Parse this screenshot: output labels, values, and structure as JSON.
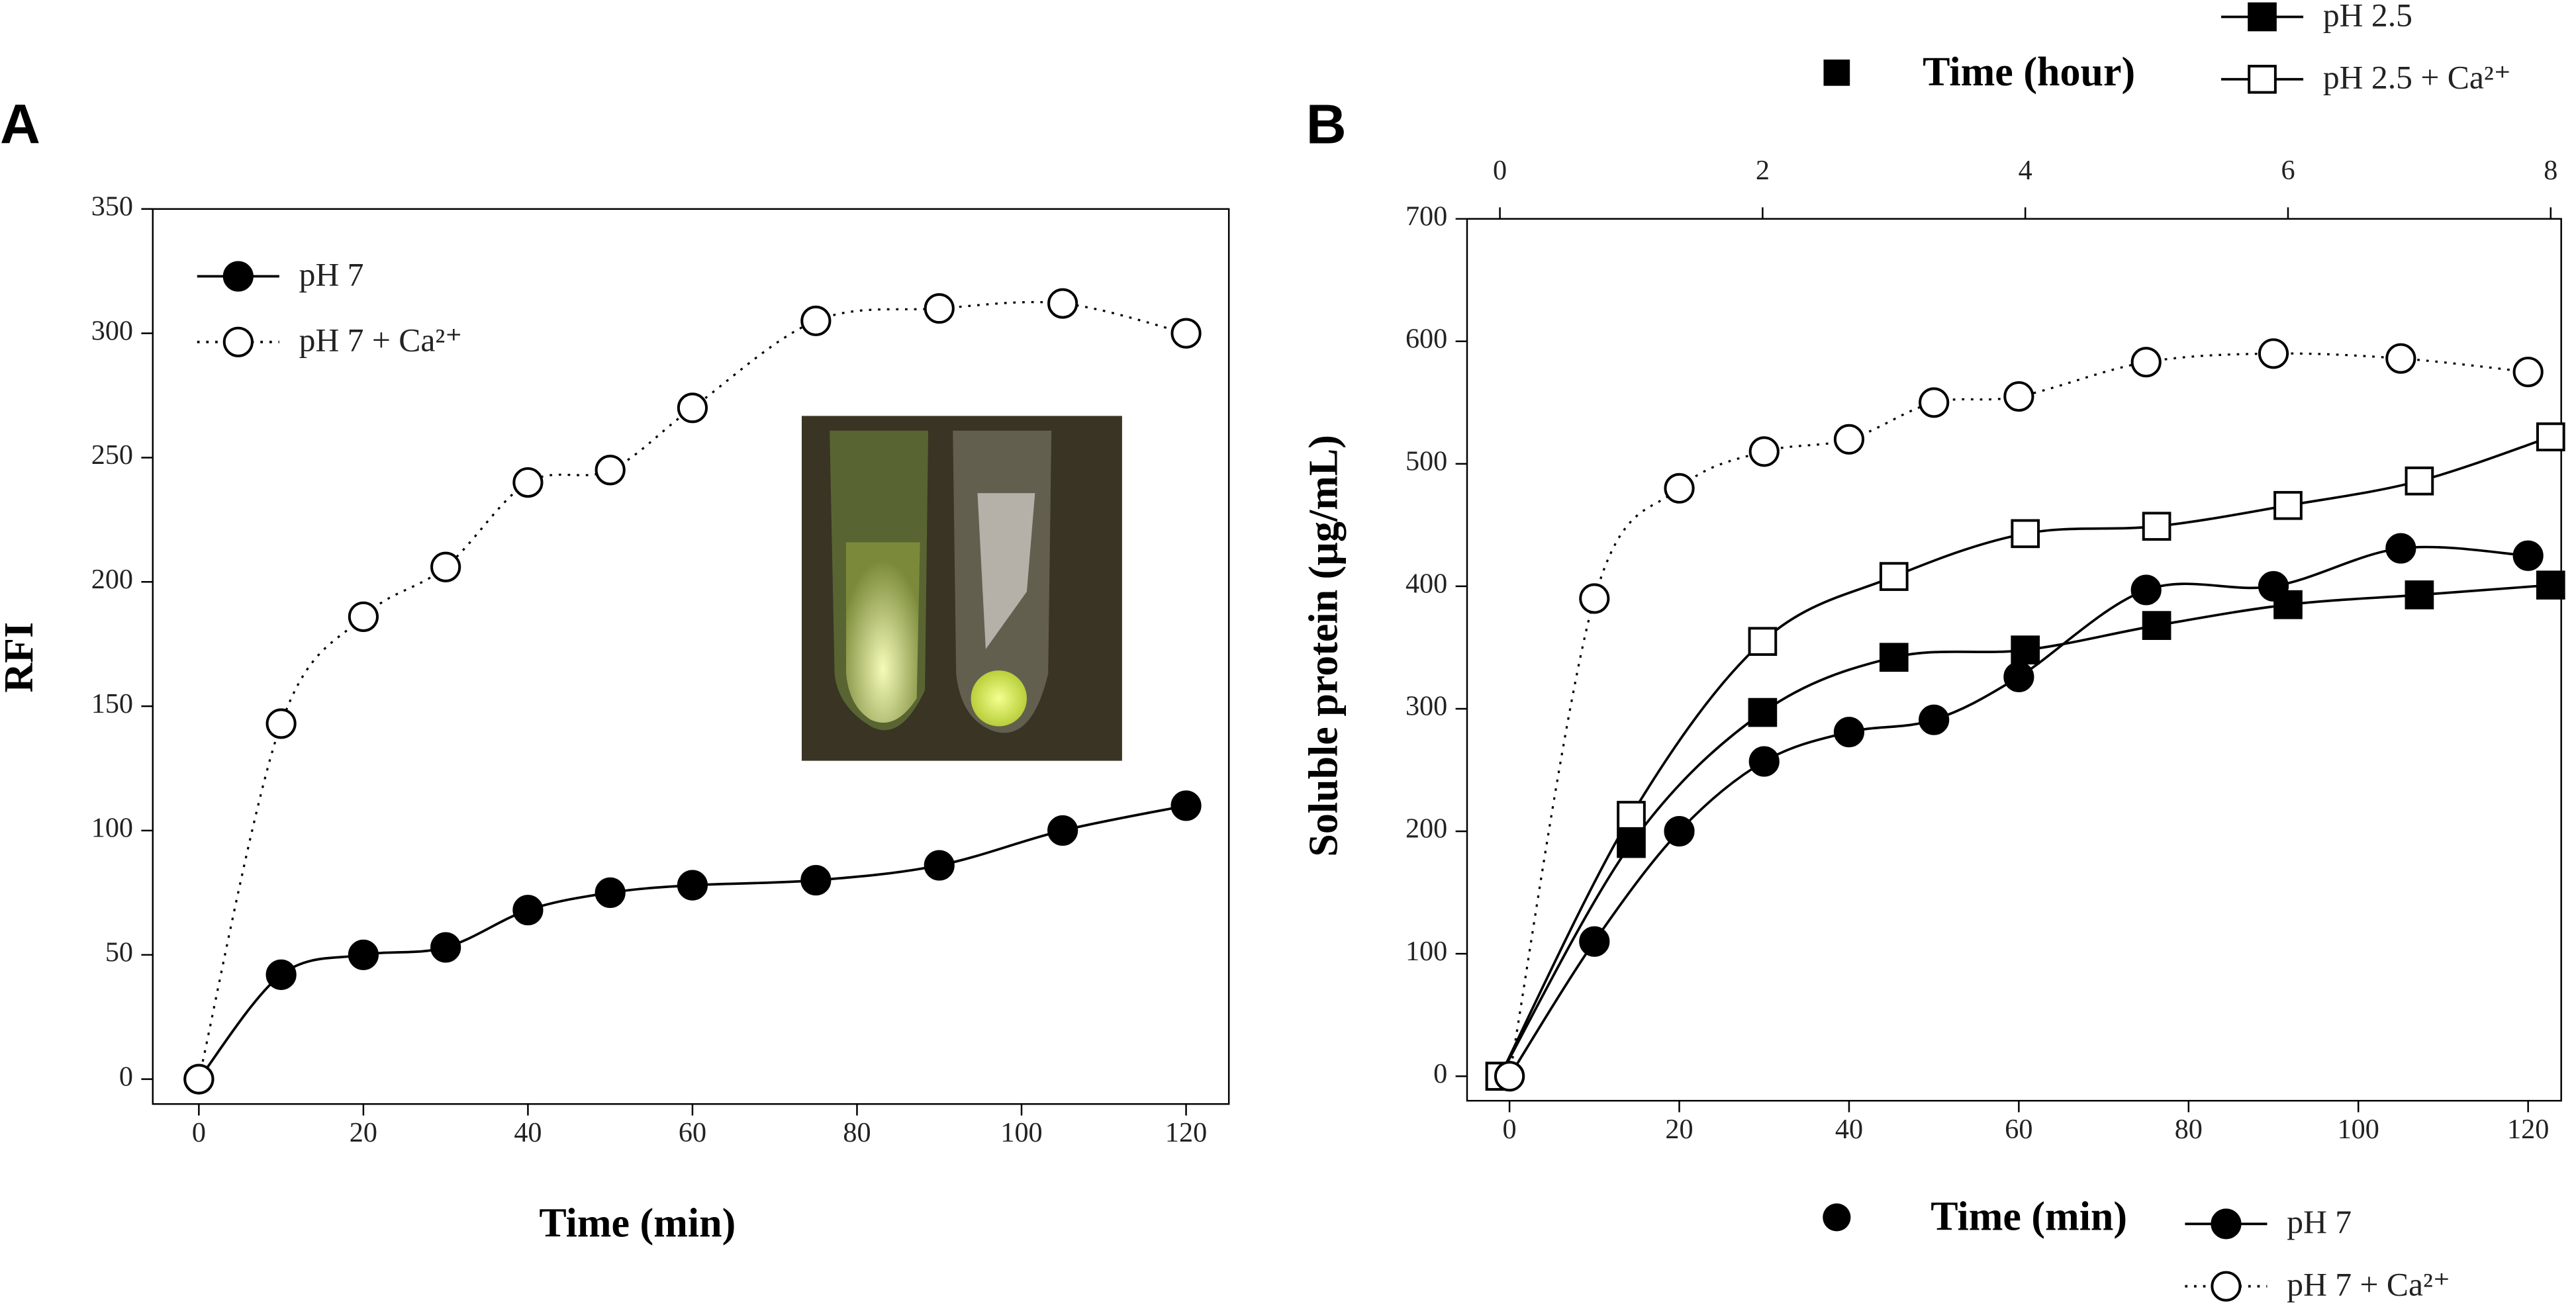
{
  "chart_data": [
    {
      "type": "line",
      "panel": "A",
      "xlabel": "Time (min)",
      "ylabel": "RFI",
      "x": [
        0,
        10,
        20,
        30,
        40,
        50,
        60,
        75,
        90,
        105,
        120
      ],
      "xlim": [
        -5.6,
        125.2
      ],
      "xticks": [
        0,
        20,
        40,
        60,
        80,
        100,
        120
      ],
      "ylim": [
        -10,
        350
      ],
      "yticks": [
        0,
        50,
        100,
        150,
        200,
        250,
        300,
        350
      ],
      "series": [
        {
          "name": "pH 7",
          "color": "#000000",
          "marker": "circle",
          "fill": "filled",
          "line_style": "solid",
          "values": [
            0,
            42,
            50,
            53,
            68,
            75,
            78,
            80,
            86,
            100,
            110
          ]
        },
        {
          "name": "pH 7 + Ca²⁺",
          "color": "#000000",
          "marker": "circle",
          "fill": "open",
          "line_style": "dotted",
          "values": [
            0,
            143,
            186,
            206,
            240,
            245,
            270,
            305,
            310,
            312,
            300
          ]
        }
      ]
    },
    {
      "type": "line",
      "panel": "B",
      "xlabel": "Time (min)",
      "x2label": "Time (hour)",
      "ylabel": "Soluble protein (µg/mL)",
      "xlim": [
        -5.0,
        123.9
      ],
      "xticks": [
        0,
        20,
        40,
        60,
        80,
        100,
        120
      ],
      "x2lim": [
        -0.25,
        8.08
      ],
      "x2ticks": [
        0,
        2,
        4,
        6,
        8
      ],
      "ylim": [
        -20,
        700
      ],
      "yticks": [
        0,
        100,
        200,
        300,
        400,
        500,
        600,
        700
      ],
      "series": [
        {
          "name": "pH 2.5",
          "axis": "x2",
          "color": "#000000",
          "marker": "square",
          "fill": "filled",
          "line_style": "solid",
          "x": [
            0,
            1,
            2,
            3,
            4,
            5,
            6,
            7,
            8
          ],
          "values": [
            0,
            190,
            297,
            342,
            348,
            368,
            385,
            393,
            401
          ]
        },
        {
          "name": "pH 2.5 + Ca²⁺",
          "axis": "x2",
          "color": "#000000",
          "marker": "square",
          "fill": "open",
          "line_style": "solid",
          "x": [
            0,
            1,
            2,
            3,
            4,
            5,
            6,
            7,
            8
          ],
          "values": [
            0,
            213,
            355,
            408,
            443,
            449,
            466,
            486,
            522
          ]
        },
        {
          "name": "pH 7",
          "axis": "x",
          "color": "#000000",
          "marker": "circle",
          "fill": "filled",
          "line_style": "solid",
          "x": [
            0,
            10,
            20,
            30,
            40,
            50,
            60,
            75,
            90,
            105,
            120
          ],
          "values": [
            0,
            110,
            200,
            257,
            281,
            291,
            326,
            397,
            400,
            431,
            425
          ]
        },
        {
          "name": "pH 7 + Ca²⁺",
          "axis": "x",
          "color": "#000000",
          "marker": "circle",
          "fill": "open",
          "line_style": "dotted",
          "x": [
            0,
            10,
            20,
            30,
            40,
            50,
            60,
            75,
            90,
            105,
            120
          ],
          "values": [
            0,
            390,
            480,
            510,
            520,
            550,
            555,
            583,
            590,
            586,
            575
          ]
        }
      ]
    }
  ]
}
